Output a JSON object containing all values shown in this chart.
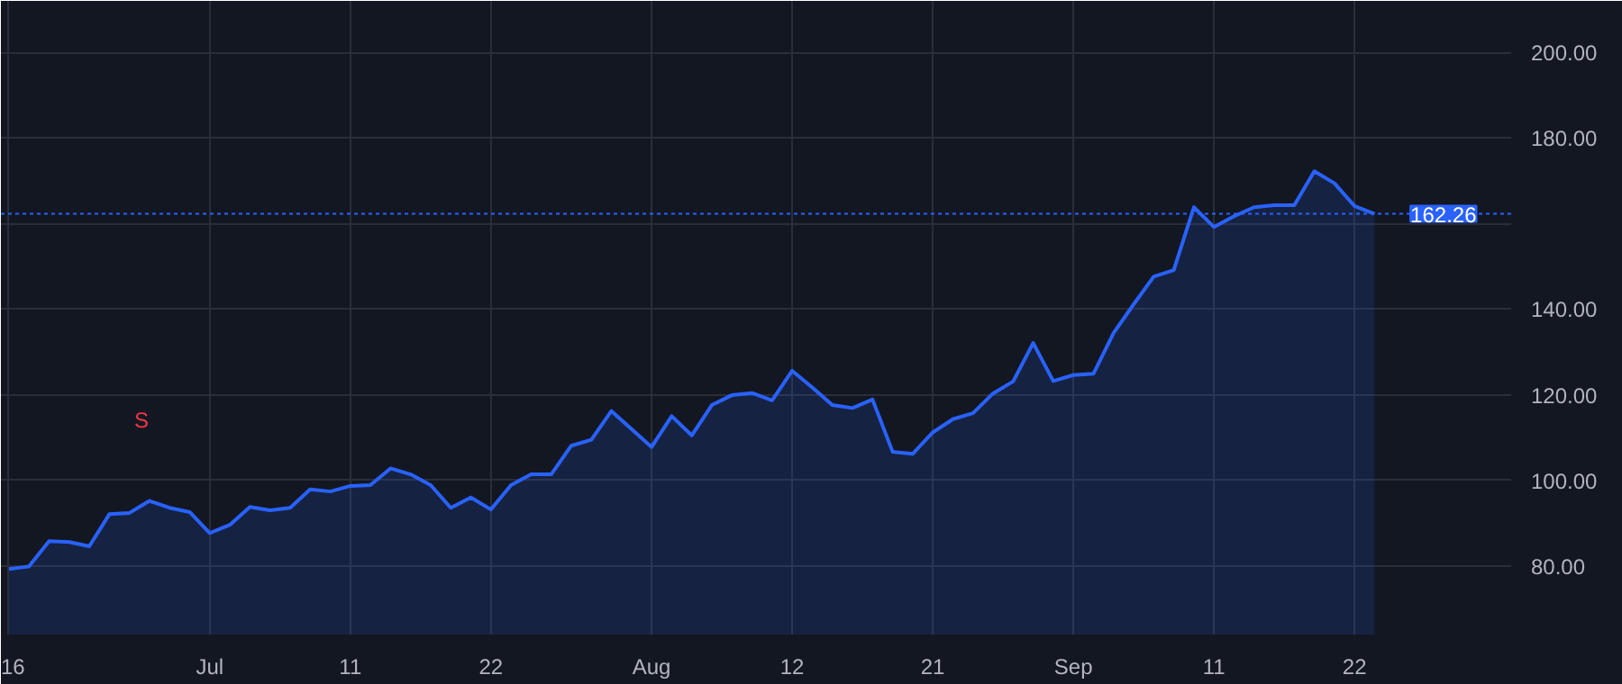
{
  "chart_data": {
    "type": "area",
    "categories": [
      "16",
      null,
      null,
      null,
      null,
      null,
      null,
      null,
      null,
      null,
      "Jul",
      null,
      null,
      null,
      null,
      null,
      null,
      "11",
      null,
      null,
      null,
      null,
      null,
      null,
      "22",
      null,
      null,
      null,
      null,
      null,
      null,
      null,
      "Aug",
      null,
      null,
      null,
      null,
      null,
      null,
      "12",
      null,
      null,
      null,
      null,
      null,
      null,
      "21",
      null,
      null,
      null,
      null,
      null,
      null,
      "Sep",
      null,
      null,
      null,
      null,
      null,
      null,
      "11",
      null,
      null,
      null,
      null,
      null,
      null,
      "22",
      null
    ],
    "series": [
      {
        "color": "#2962ff",
        "values": [
          79.3,
          79.9,
          85.8,
          85.6,
          84.6,
          92.1,
          92.4,
          95.2,
          93.6,
          92.6,
          87.7,
          89.6,
          93.8,
          93.0,
          93.6,
          97.9,
          97.4,
          98.7,
          98.9,
          102.8,
          101.4,
          98.9,
          93.6,
          96.0,
          93.2,
          98.9,
          101.4,
          101.4,
          108.1,
          109.5,
          116.2,
          112.0,
          107.8,
          115.0,
          110.5,
          117.6,
          119.9,
          120.4,
          118.7,
          125.6,
          121.7,
          117.6,
          116.9,
          118.9,
          106.7,
          106.2,
          111.2,
          114.3,
          115.7,
          120.3,
          123.1,
          132.1,
          123.2,
          124.6,
          124.9,
          134.4,
          141.1,
          147.6,
          149.1,
          163.8,
          159.2,
          161.7,
          163.8,
          164.3,
          164.3,
          172.2,
          169.4,
          164.1,
          162.26
        ]
      }
    ],
    "ylim": [
      64,
      212
    ],
    "yticks": [
      {
        "value": 80,
        "label": "80.00"
      },
      {
        "value": 100,
        "label": "100.00"
      },
      {
        "value": 120,
        "label": "120.00"
      },
      {
        "value": 140,
        "label": "140.00"
      },
      {
        "value": 160,
        "label": null
      },
      {
        "value": 180,
        "label": "180.00"
      },
      {
        "value": 200,
        "label": "200.00"
      }
    ],
    "ref_lines": [
      {
        "axis": "y",
        "value": 162.26,
        "label": "162.26",
        "color": "#2962ff",
        "line_style": "dotted"
      }
    ],
    "annotations": [
      "S"
    ],
    "grid": true
  }
}
